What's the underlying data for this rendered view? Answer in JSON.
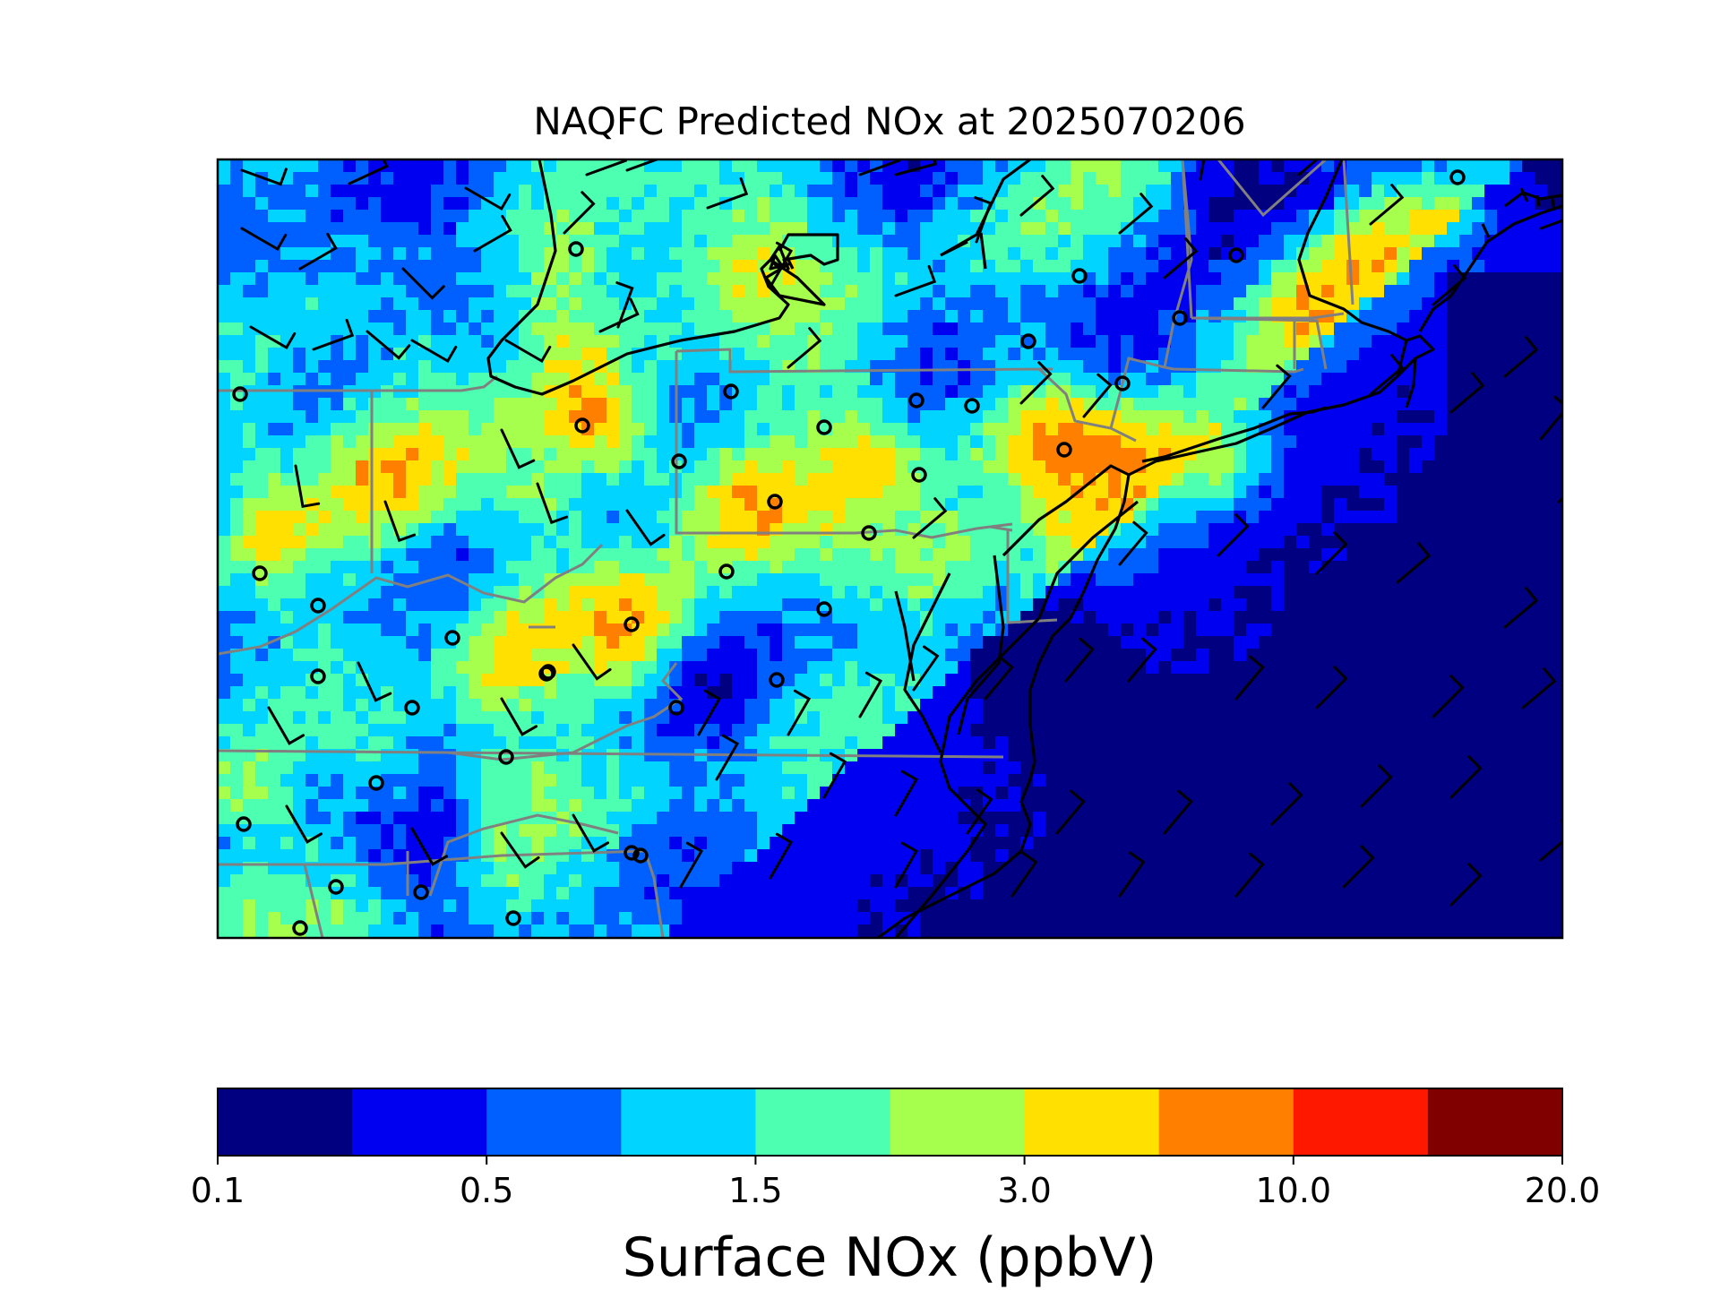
{
  "title": "NAQFC Predicted NOx at 2025070206",
  "colorbar": {
    "label": "Surface NOx (ppbV)",
    "colors": [
      "#000080",
      "#0000f0",
      "#0060ff",
      "#00d4ff",
      "#4dffb0",
      "#a6ff4d",
      "#ffe000",
      "#ff7f00",
      "#ff1800",
      "#800000"
    ],
    "tick_labels": [
      "0.1",
      "0.5",
      "1.5",
      "3.0",
      "10.0",
      "20.0"
    ]
  },
  "map": {
    "coast_color": "#000000",
    "state_border_color": "#808080",
    "station_marker": "open-circle",
    "wind_marker": "wind-barb"
  }
}
